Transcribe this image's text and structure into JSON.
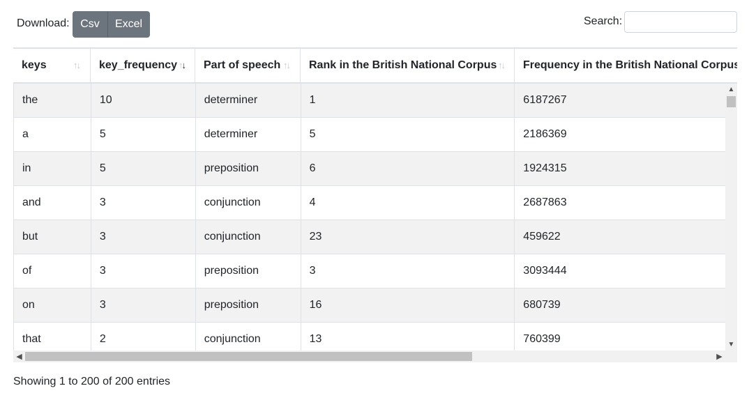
{
  "toolbar": {
    "download_label": "Download:",
    "csv_label": "Csv",
    "excel_label": "Excel",
    "search_label": "Search:",
    "search_value": ""
  },
  "table": {
    "columns": [
      "keys",
      "key_frequency",
      "Part of speech",
      "Rank in the British National Corpus",
      "Frequency in the British National Corpus"
    ],
    "rows": [
      [
        "the",
        "10",
        "determiner",
        "1",
        "6187267"
      ],
      [
        "a",
        "5",
        "determiner",
        "5",
        "2186369"
      ],
      [
        "in",
        "5",
        "preposition",
        "6",
        "1924315"
      ],
      [
        "and",
        "3",
        "conjunction",
        "4",
        "2687863"
      ],
      [
        "but",
        "3",
        "conjunction",
        "23",
        "459622"
      ],
      [
        "of",
        "3",
        "preposition",
        "3",
        "3093444"
      ],
      [
        "on",
        "3",
        "preposition",
        "16",
        "680739"
      ],
      [
        "that",
        "2",
        "conjunction",
        "13",
        "760399"
      ]
    ],
    "sorted_column": "key_frequency",
    "sort_direction": "descending"
  },
  "footer": {
    "info": "Showing 1 to 200 of 200 entries"
  },
  "icons": {
    "sort": "sort-arrows-icon",
    "scroll_up": "chevron-up-icon",
    "scroll_down": "chevron-down-icon",
    "scroll_left": "chevron-left-icon",
    "scroll_right": "chevron-right-icon"
  }
}
